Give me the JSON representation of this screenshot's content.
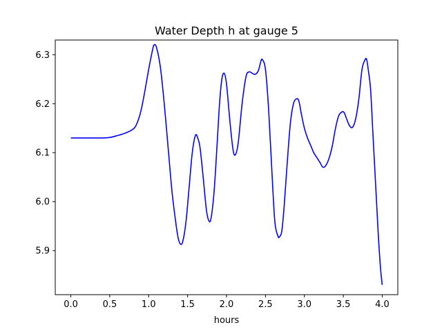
{
  "chart_data": {
    "type": "line",
    "title": "Water Depth h at gauge 5",
    "xlabel": "hours",
    "ylabel": "",
    "xlim": [
      -0.2,
      4.2
    ],
    "ylim": [
      5.81,
      6.33
    ],
    "x_ticks": [
      0.0,
      0.5,
      1.0,
      1.5,
      2.0,
      2.5,
      3.0,
      3.5,
      4.0
    ],
    "x_tick_labels": [
      "0.0",
      "0.5",
      "1.0",
      "1.5",
      "2.0",
      "2.5",
      "3.0",
      "3.5",
      "4.0"
    ],
    "y_ticks": [
      5.9,
      6.0,
      6.1,
      6.2,
      6.3
    ],
    "y_tick_labels": [
      "5.9",
      "6.0",
      "6.1",
      "6.2",
      "6.3"
    ],
    "grid": false,
    "legend": "none",
    "series": [
      {
        "color": "#0000ff",
        "x": [
          0.0,
          0.2,
          0.4,
          0.5,
          0.6,
          0.7,
          0.8,
          0.85,
          0.9,
          0.95,
          1.0,
          1.05,
          1.07,
          1.1,
          1.15,
          1.2,
          1.25,
          1.3,
          1.35,
          1.38,
          1.41,
          1.44,
          1.48,
          1.52,
          1.56,
          1.6,
          1.63,
          1.66,
          1.7,
          1.74,
          1.77,
          1.8,
          1.84,
          1.88,
          1.91,
          1.94,
          1.97,
          2.0,
          2.04,
          2.08,
          2.11,
          2.15,
          2.2,
          2.25,
          2.29,
          2.33,
          2.37,
          2.41,
          2.44,
          2.46,
          2.5,
          2.54,
          2.58,
          2.62,
          2.66,
          2.68,
          2.71,
          2.74,
          2.78,
          2.82,
          2.86,
          2.9,
          2.93,
          2.96,
          3.0,
          3.04,
          3.08,
          3.12,
          3.16,
          3.2,
          3.24,
          3.28,
          3.32,
          3.36,
          3.4,
          3.44,
          3.48,
          3.51,
          3.54,
          3.58,
          3.62,
          3.66,
          3.7,
          3.74,
          3.78,
          3.8,
          3.82,
          3.85,
          3.88,
          3.92,
          3.95,
          3.98,
          4.0
        ],
        "y": [
          6.13,
          6.13,
          6.13,
          6.131,
          6.135,
          6.14,
          6.148,
          6.16,
          6.185,
          6.225,
          6.27,
          6.31,
          6.32,
          6.315,
          6.275,
          6.2,
          6.11,
          6.02,
          5.955,
          5.925,
          5.913,
          5.92,
          5.96,
          6.03,
          6.1,
          6.135,
          6.13,
          6.11,
          6.05,
          5.985,
          5.962,
          5.965,
          6.02,
          6.12,
          6.2,
          6.25,
          6.262,
          6.24,
          6.17,
          6.11,
          6.095,
          6.12,
          6.2,
          6.255,
          6.265,
          6.262,
          6.26,
          6.268,
          6.286,
          6.29,
          6.27,
          6.19,
          6.07,
          5.96,
          5.93,
          5.928,
          5.94,
          5.99,
          6.08,
          6.16,
          6.2,
          6.21,
          6.205,
          6.18,
          6.15,
          6.13,
          6.115,
          6.1,
          6.09,
          6.08,
          6.07,
          6.075,
          6.09,
          6.115,
          6.15,
          6.175,
          6.183,
          6.182,
          6.17,
          6.155,
          6.152,
          6.17,
          6.21,
          6.27,
          6.29,
          6.29,
          6.27,
          6.23,
          6.14,
          6.02,
          5.93,
          5.86,
          5.83
        ]
      }
    ]
  }
}
